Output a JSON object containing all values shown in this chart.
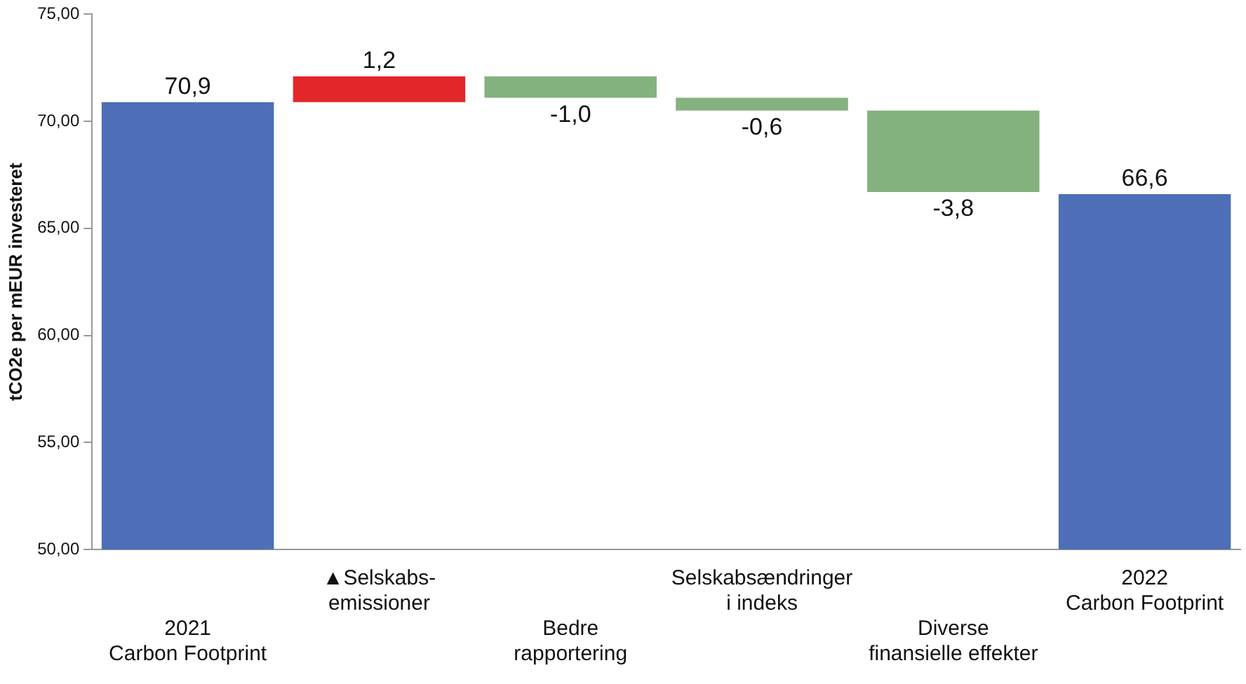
{
  "chart_data": {
    "type": "bar",
    "ylabel": "tCO2e per mEUR investeret",
    "categories": [
      "2021\nCarbon Footprint",
      "▲Selskabs-\nemissioner",
      "Bedre\nrapportering",
      "Selskabsændringer\ni indeks",
      "Diverse\nfinansielle effekter",
      "2022\nCarbon Footprint"
    ],
    "values": [
      70.9,
      1.2,
      -1.0,
      -0.6,
      -3.8,
      66.6
    ],
    "base": [
      null,
      70.9,
      72.1,
      71.1,
      70.5,
      null
    ],
    "colors": [
      "#4e6fb7",
      "#e3262a",
      "#84b27f",
      "#84b27f",
      "#84b27f",
      "#4e6fb7"
    ],
    "value_labels": [
      "70,9",
      "1,2",
      "-1,0",
      "-0,6",
      "-3,8",
      "66,6"
    ],
    "ylim": [
      50,
      75
    ],
    "yticks": [
      {
        "value": 50,
        "label": "50,00"
      },
      {
        "value": 55,
        "label": "55,00"
      },
      {
        "value": 60,
        "label": "60,00"
      },
      {
        "value": 65,
        "label": "65,00"
      },
      {
        "value": 70,
        "label": "70,00"
      },
      {
        "value": 75,
        "label": "75,00"
      }
    ],
    "grid": false,
    "legend": false
  }
}
